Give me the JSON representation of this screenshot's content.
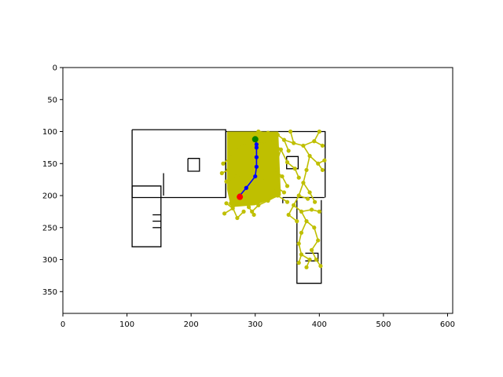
{
  "chart_data": {
    "type": "scatter",
    "title": "",
    "xlabel": "",
    "ylabel": "",
    "xlim": [
      0,
      608
    ],
    "ylim": [
      384,
      0
    ],
    "y_inverted": true,
    "grid": false,
    "legend": "none",
    "xticks": [
      0,
      100,
      200,
      300,
      400,
      500,
      600
    ],
    "yticks": [
      0,
      50,
      100,
      150,
      200,
      250,
      300,
      350
    ],
    "colors": {
      "tree": "#bfbf00",
      "path": "#0000ff",
      "start": "#ff0000",
      "goal": "#008000",
      "walls": "#000000"
    },
    "map_walls": [
      {
        "points": [
          [
            108,
            97
          ],
          [
            254,
            97
          ],
          [
            254,
            203
          ],
          [
            108,
            203
          ],
          [
            108,
            97
          ]
        ]
      },
      {
        "points": [
          [
            108,
            185
          ],
          [
            153,
            185
          ],
          [
            153,
            280
          ],
          [
            108,
            280
          ],
          [
            108,
            185
          ]
        ]
      },
      {
        "points": [
          [
            157,
            165
          ],
          [
            157,
            200
          ]
        ]
      },
      {
        "points": [
          [
            254,
            100
          ],
          [
            409,
            100
          ],
          [
            409,
            203
          ]
        ]
      },
      {
        "points": [
          [
            254,
            100
          ],
          [
            254,
            203
          ]
        ]
      },
      {
        "points": [
          [
            195,
            142
          ],
          [
            213,
            142
          ],
          [
            213,
            162
          ],
          [
            195,
            162
          ],
          [
            195,
            142
          ]
        ]
      },
      {
        "points": [
          [
            349,
            139
          ],
          [
            367,
            139
          ],
          [
            367,
            158
          ],
          [
            349,
            158
          ],
          [
            349,
            139
          ]
        ]
      },
      {
        "points": [
          [
            343,
            203
          ],
          [
            408,
            203
          ]
        ]
      },
      {
        "points": [
          [
            343,
            203
          ],
          [
            343,
            212
          ]
        ]
      },
      {
        "points": [
          [
            365,
            207
          ],
          [
            365,
            337
          ],
          [
            403,
            337
          ],
          [
            403,
            207
          ]
        ]
      },
      {
        "points": [
          [
            378,
            290
          ],
          [
            398,
            290
          ],
          [
            398,
            302
          ],
          [
            378,
            302
          ]
        ]
      },
      {
        "points": [
          [
            140,
            230
          ],
          [
            153,
            230
          ]
        ]
      },
      {
        "points": [
          [
            140,
            240
          ],
          [
            153,
            240
          ]
        ]
      },
      {
        "points": [
          [
            140,
            250
          ],
          [
            153,
            250
          ]
        ]
      }
    ],
    "tree_edges": [
      [
        [
          300,
          112
        ],
        [
          290,
          118
        ]
      ],
      [
        [
          290,
          118
        ],
        [
          275,
          125
        ]
      ],
      [
        [
          275,
          125
        ],
        [
          262,
          140
        ]
      ],
      [
        [
          262,
          140
        ],
        [
          258,
          160
        ]
      ],
      [
        [
          258,
          160
        ],
        [
          262,
          180
        ]
      ],
      [
        [
          262,
          180
        ],
        [
          270,
          200
        ]
      ],
      [
        [
          300,
          112
        ],
        [
          310,
          120
        ]
      ],
      [
        [
          310,
          120
        ],
        [
          322,
          112
        ]
      ],
      [
        [
          322,
          112
        ],
        [
          335,
          105
        ]
      ],
      [
        [
          335,
          105
        ],
        [
          345,
          113
        ]
      ],
      [
        [
          300,
          112
        ],
        [
          305,
          100
        ]
      ],
      [
        [
          305,
          100
        ],
        [
          320,
          102
        ]
      ],
      [
        [
          322,
          112
        ],
        [
          340,
          128
        ]
      ],
      [
        [
          340,
          128
        ],
        [
          350,
          148
        ]
      ],
      [
        [
          340,
          128
        ],
        [
          330,
          160
        ]
      ],
      [
        [
          330,
          160
        ],
        [
          322,
          180
        ]
      ],
      [
        [
          322,
          180
        ],
        [
          335,
          200
        ]
      ],
      [
        [
          335,
          200
        ],
        [
          350,
          210
        ]
      ],
      [
        [
          310,
          120
        ],
        [
          300,
          140
        ]
      ],
      [
        [
          300,
          140
        ],
        [
          292,
          165
        ]
      ],
      [
        [
          292,
          165
        ],
        [
          285,
          190
        ]
      ],
      [
        [
          285,
          190
        ],
        [
          278,
          205
        ]
      ],
      [
        [
          278,
          205
        ],
        [
          265,
          220
        ]
      ],
      [
        [
          265,
          220
        ],
        [
          252,
          228
        ]
      ],
      [
        [
          278,
          205
        ],
        [
          290,
          218
        ]
      ],
      [
        [
          290,
          218
        ],
        [
          298,
          230
        ]
      ],
      [
        [
          292,
          165
        ],
        [
          270,
          170
        ]
      ],
      [
        [
          270,
          170
        ],
        [
          255,
          178
        ]
      ],
      [
        [
          292,
          165
        ],
        [
          310,
          175
        ]
      ],
      [
        [
          310,
          175
        ],
        [
          330,
          185
        ]
      ],
      [
        [
          330,
          185
        ],
        [
          345,
          195
        ]
      ],
      [
        [
          345,
          113
        ],
        [
          360,
          118
        ]
      ],
      [
        [
          360,
          118
        ],
        [
          375,
          122
        ]
      ],
      [
        [
          375,
          122
        ],
        [
          392,
          115
        ]
      ],
      [
        [
          392,
          115
        ],
        [
          400,
          100
        ]
      ],
      [
        [
          375,
          122
        ],
        [
          385,
          138
        ]
      ],
      [
        [
          385,
          138
        ],
        [
          398,
          150
        ]
      ],
      [
        [
          398,
          150
        ],
        [
          405,
          160
        ]
      ],
      [
        [
          385,
          138
        ],
        [
          380,
          160
        ]
      ],
      [
        [
          380,
          160
        ],
        [
          375,
          180
        ]
      ],
      [
        [
          375,
          180
        ],
        [
          385,
          195
        ]
      ],
      [
        [
          385,
          195
        ],
        [
          393,
          210
        ]
      ],
      [
        [
          375,
          180
        ],
        [
          368,
          200
        ]
      ],
      [
        [
          368,
          200
        ],
        [
          360,
          215
        ]
      ],
      [
        [
          360,
          215
        ],
        [
          372,
          225
        ]
      ],
      [
        [
          372,
          225
        ],
        [
          380,
          240
        ]
      ],
      [
        [
          380,
          240
        ],
        [
          372,
          258
        ]
      ],
      [
        [
          372,
          258
        ],
        [
          368,
          275
        ]
      ],
      [
        [
          368,
          275
        ],
        [
          372,
          292
        ]
      ],
      [
        [
          372,
          292
        ],
        [
          368,
          305
        ]
      ],
      [
        [
          380,
          240
        ],
        [
          392,
          250
        ]
      ],
      [
        [
          392,
          250
        ],
        [
          398,
          270
        ]
      ],
      [
        [
          398,
          270
        ],
        [
          388,
          285
        ]
      ],
      [
        [
          388,
          285
        ],
        [
          395,
          300
        ]
      ],
      [
        [
          395,
          300
        ],
        [
          402,
          310
        ]
      ],
      [
        [
          372,
          292
        ],
        [
          385,
          300
        ]
      ],
      [
        [
          385,
          300
        ],
        [
          380,
          312
        ]
      ],
      [
        [
          360,
          118
        ],
        [
          355,
          100
        ]
      ],
      [
        [
          392,
          115
        ],
        [
          405,
          122
        ]
      ],
      [
        [
          345,
          113
        ],
        [
          352,
          130
        ]
      ],
      [
        [
          350,
          148
        ],
        [
          362,
          158
        ]
      ],
      [
        [
          362,
          158
        ],
        [
          368,
          172
        ]
      ],
      [
        [
          262,
          140
        ],
        [
          250,
          150
        ]
      ],
      [
        [
          258,
          160
        ],
        [
          248,
          165
        ]
      ],
      [
        [
          270,
          200
        ],
        [
          262,
          212
        ]
      ],
      [
        [
          262,
          212
        ],
        [
          272,
          235
        ]
      ],
      [
        [
          272,
          235
        ],
        [
          282,
          225
        ]
      ],
      [
        [
          265,
          220
        ],
        [
          255,
          212
        ]
      ],
      [
        [
          330,
          160
        ],
        [
          342,
          170
        ]
      ],
      [
        [
          342,
          170
        ],
        [
          350,
          185
        ]
      ],
      [
        [
          335,
          200
        ],
        [
          320,
          208
        ]
      ],
      [
        [
          320,
          208
        ],
        [
          305,
          215
        ]
      ],
      [
        [
          305,
          215
        ],
        [
          295,
          225
        ]
      ],
      [
        [
          368,
          200
        ],
        [
          382,
          205
        ]
      ],
      [
        [
          360,
          215
        ],
        [
          352,
          230
        ]
      ],
      [
        [
          352,
          230
        ],
        [
          365,
          240
        ]
      ],
      [
        [
          398,
          150
        ],
        [
          408,
          145
        ]
      ],
      [
        [
          372,
          225
        ],
        [
          388,
          222
        ]
      ],
      [
        [
          388,
          222
        ],
        [
          400,
          225
        ]
      ]
    ],
    "tree_fill_region": [
      [
        256,
        100
      ],
      [
        336,
        100
      ],
      [
        340,
        200
      ],
      [
        300,
        215
      ],
      [
        262,
        218
      ],
      [
        256,
        190
      ]
    ],
    "path": {
      "x": [
        300,
        302,
        302,
        302,
        302,
        300,
        286,
        276
      ],
      "y": [
        112,
        120,
        125,
        140,
        155,
        170,
        188,
        200
      ]
    },
    "start": {
      "x": 276,
      "y": 202
    },
    "goal": {
      "x": 300,
      "y": 112
    }
  }
}
